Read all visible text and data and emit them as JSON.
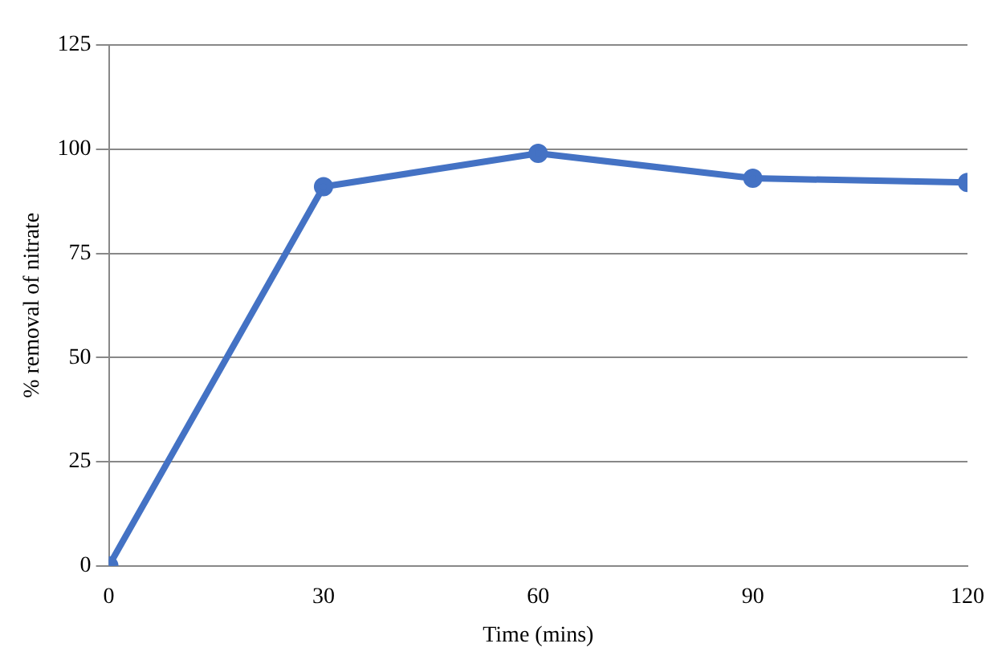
{
  "chart_data": {
    "type": "line",
    "xlabel": "Time (mins)",
    "ylabel": "% removal of nitrate",
    "x": [
      0,
      30,
      60,
      90,
      120
    ],
    "series": [
      {
        "color": "#4472c4",
        "values": [
          0,
          91,
          99,
          93,
          92
        ]
      }
    ],
    "xlim": [
      0,
      120
    ],
    "xticks": [
      0,
      30,
      60,
      90,
      120
    ],
    "ylim": [
      0,
      125
    ],
    "yticks": [
      0,
      25,
      50,
      75,
      100,
      125
    ],
    "grid": "y",
    "marker": "circle",
    "line_style": "solid"
  }
}
